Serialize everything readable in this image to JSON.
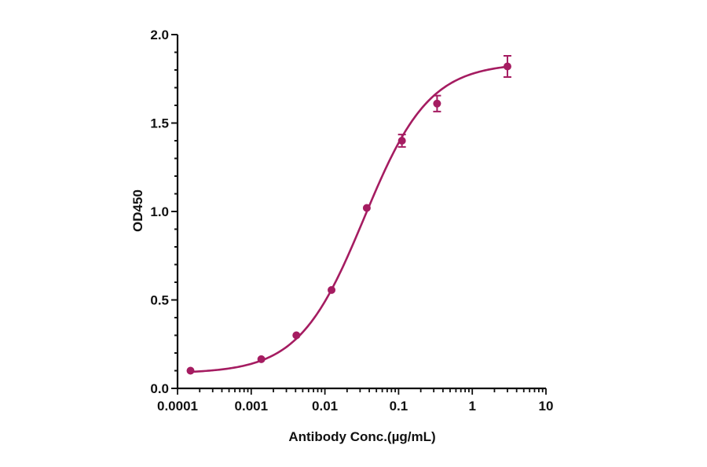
{
  "chart_data": {
    "type": "scatter",
    "title": "",
    "xlabel": "Antibody Conc.(µg/mL)",
    "ylabel": "OD450",
    "xscale": "log",
    "xlim": [
      0.0001,
      10
    ],
    "ylim": [
      0,
      2.0
    ],
    "x_ticks": [
      0.0001,
      0.001,
      0.01,
      0.1,
      1,
      10
    ],
    "x_tick_labels": [
      "0.0001",
      "0.001",
      "0.01",
      "0.1",
      "1",
      "10"
    ],
    "y_ticks": [
      0.0,
      0.5,
      1.0,
      1.5,
      2.0
    ],
    "y_tick_labels": [
      "0.0",
      "0.5",
      "1.0",
      "1.5",
      "2.0"
    ],
    "y_minor_step": 0.1,
    "grid": false,
    "legend": null,
    "series": [
      {
        "name": "OD450",
        "color": "#A51C61",
        "x": [
          0.00015,
          0.00137,
          0.0041,
          0.0123,
          0.037,
          0.111,
          0.333,
          3.0
        ],
        "values": [
          0.1,
          0.165,
          0.3,
          0.556,
          1.02,
          1.4,
          1.61,
          1.82
        ],
        "error": [
          0.005,
          0.01,
          0.01,
          0.01,
          0.01,
          0.035,
          0.045,
          0.06
        ]
      }
    ],
    "fit": {
      "model": "4PL",
      "bottom": 0.085,
      "top": 1.84,
      "ec50": 0.034,
      "hill": 0.98,
      "x_from": 0.00015,
      "x_to": 3.0
    }
  },
  "colors": {
    "series": "#A51C61",
    "axis": "#111111"
  }
}
